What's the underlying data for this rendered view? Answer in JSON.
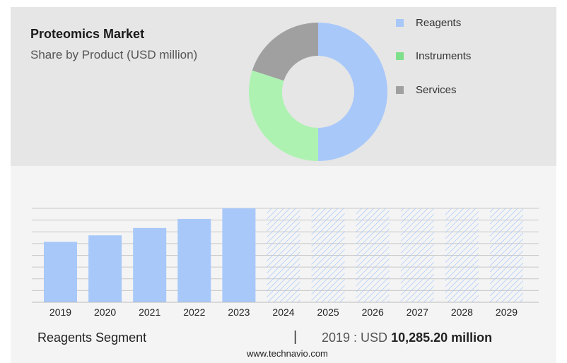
{
  "header": {
    "title": "Proteomics Market",
    "subtitle": "Share by Product (USD million)"
  },
  "colors": {
    "reagents": "#a8c8fa",
    "instruments": "#aef2b2",
    "services": "#a0a0a0",
    "legend_instruments": "#7ee08a",
    "forecast_hatch": "#a8c8fa"
  },
  "chart_data": [
    {
      "type": "pie",
      "style": "donut",
      "labels": [
        "Reagents",
        "Instruments",
        "Services"
      ],
      "values": [
        50,
        30,
        20
      ],
      "legend_position": "right"
    },
    {
      "type": "bar",
      "categories": [
        "2019",
        "2020",
        "2021",
        "2022",
        "2023",
        "2024",
        "2025",
        "2026",
        "2027",
        "2028",
        "2029"
      ],
      "values": [
        10285.2,
        11400,
        12650,
        14200,
        16000,
        16000,
        16000,
        16000,
        16000,
        16000,
        16000
      ],
      "forecast_from": "2024",
      "grid": true
    }
  ],
  "legend": {
    "items": [
      {
        "label": "Reagents"
      },
      {
        "label": "Instruments"
      },
      {
        "label": "Services"
      }
    ]
  },
  "footer": {
    "segment": "Reagents Segment",
    "separator": "|",
    "value_prefix": "2019 : USD",
    "value": "10,285.20 million"
  },
  "source": "www.technavio.com"
}
